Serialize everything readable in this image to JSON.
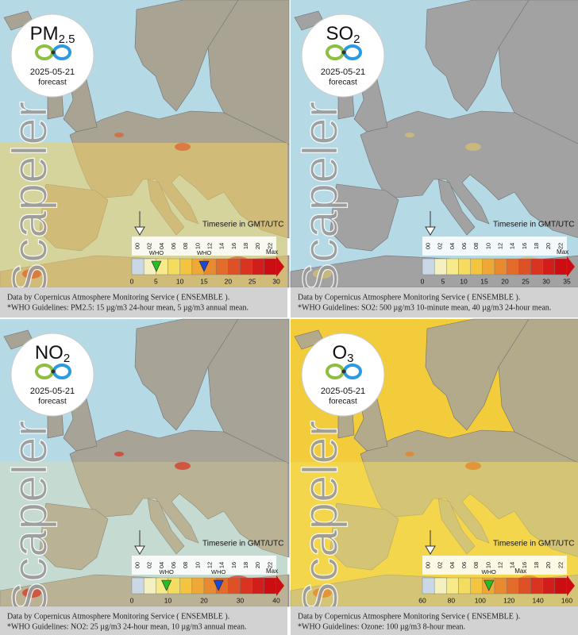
{
  "panels": [
    {
      "pollutant": {
        "main": "PM",
        "sub": "2.5"
      },
      "date": "2025-05-21",
      "label": "forecast",
      "watermark": "Scapeler",
      "timeserie": "Timeserie in GMT/UTC",
      "hours": [
        "00",
        "02",
        "04",
        "06",
        "08",
        "10",
        "12",
        "14",
        "16",
        "18",
        "20",
        "22"
      ],
      "max": "Max",
      "scale": [
        0,
        5,
        10,
        15,
        20,
        25,
        30
      ],
      "who": [
        "WHO",
        "WHO"
      ],
      "caption": [
        "Data by Copernicus Atmosphere Monitoring Service ( ENSEMBLE ).",
        "*WHO Guidelines: PM2.5: 15 µg/m3 24-hour mean, 5 µg/m3 annual mean."
      ]
    },
    {
      "pollutant": {
        "main": "SO",
        "sub": "2"
      },
      "date": "2025-05-21",
      "label": "forecast",
      "watermark": "Scapeler",
      "timeserie": "Timeserie in GMT/UTC",
      "hours": [
        "00",
        "02",
        "04",
        "06",
        "08",
        "10",
        "12",
        "14",
        "16",
        "18",
        "20",
        "22"
      ],
      "max": "Max",
      "scale": [
        0,
        5,
        10,
        15,
        20,
        25,
        30,
        35
      ],
      "who": [],
      "caption": [
        "Data by Copernicus Atmosphere Monitoring Service ( ENSEMBLE ).",
        "*WHO Guidelines: SO2: 500 µg/m3 10-minute mean, 40 µg/m3 24-hour mean."
      ]
    },
    {
      "pollutant": {
        "main": "NO",
        "sub": "2"
      },
      "date": "2025-05-21",
      "label": "forecast",
      "watermark": "Scapeler",
      "timeserie": "Timeserie in GMT/UTC",
      "hours": [
        "00",
        "02",
        "04",
        "06",
        "08",
        "10",
        "12",
        "14",
        "16",
        "18",
        "20",
        "22"
      ],
      "max": "Max",
      "scale": [
        0,
        10,
        20,
        30,
        40
      ],
      "who": [
        "WHO",
        "WHO"
      ],
      "caption": [
        "Data by Copernicus Atmosphere Monitoring Service ( ENSEMBLE ).",
        "*WHO Guidelines: NO2: 25 µg/m3 24-hour mean, 10 µg/m3 annual mean."
      ]
    },
    {
      "pollutant": {
        "main": "O",
        "sub": "3"
      },
      "date": "2025-05-21",
      "label": "forecast",
      "watermark": "Scapeler",
      "timeserie": "Timeserie in GMT/UTC",
      "hours": [
        "00",
        "02",
        "04",
        "06",
        "08",
        "10",
        "12",
        "14",
        "16",
        "18",
        "20",
        "22"
      ],
      "max": "Max",
      "scale": [
        60,
        80,
        100,
        120,
        140,
        160
      ],
      "who": [
        "WHO"
      ],
      "caption": [
        "Data by Copernicus Atmosphere Monitoring Service ( ENSEMBLE ).",
        "*WHO Guidelines: Ozone: 100 µg/m3 8-hour mean."
      ]
    }
  ]
}
